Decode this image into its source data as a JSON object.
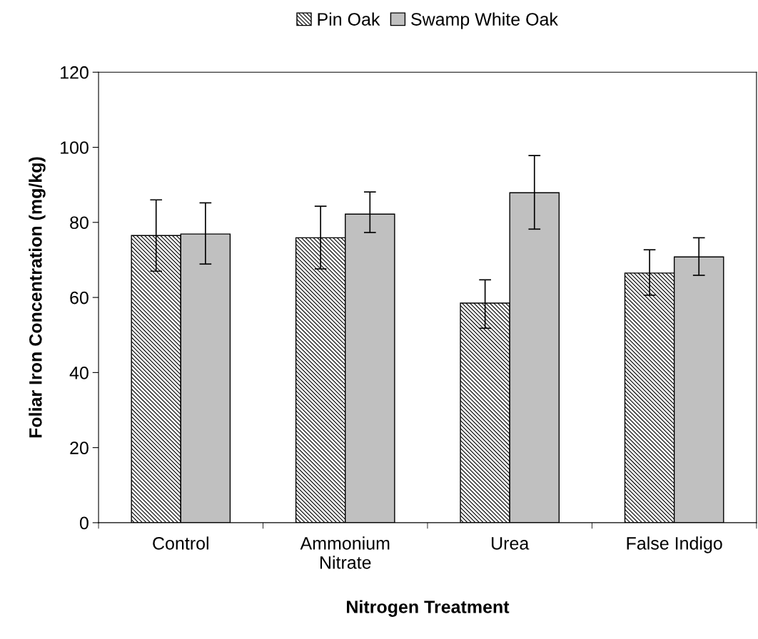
{
  "chart_data": {
    "type": "bar",
    "xlabel": "Nitrogen Treatment",
    "ylabel": "Foliar Iron Concentration (mg/kg)",
    "categories": [
      "Control",
      "Ammonium\nNitrate",
      "Urea",
      "False Indigo"
    ],
    "series": [
      {
        "name": "Pin Oak",
        "color": "#000000",
        "values": [
          76.5,
          75.9,
          58.5,
          66.5
        ],
        "errors": [
          [
            67.0,
            86.0
          ],
          [
            67.6,
            84.3
          ],
          [
            51.8,
            64.7
          ],
          [
            60.6,
            72.7
          ]
        ]
      },
      {
        "name": "Swamp White Oak",
        "color": "#c0c0c0",
        "values": [
          76.9,
          82.2,
          87.9,
          70.8
        ],
        "errors": [
          [
            68.9,
            85.2
          ],
          [
            77.3,
            88.1
          ],
          [
            78.2,
            97.8
          ],
          [
            65.9,
            75.9
          ]
        ]
      }
    ],
    "ylim": [
      0,
      120
    ],
    "yticks": [
      0,
      20,
      40,
      60,
      80,
      100,
      120
    ],
    "legend": "top",
    "grid": false
  }
}
